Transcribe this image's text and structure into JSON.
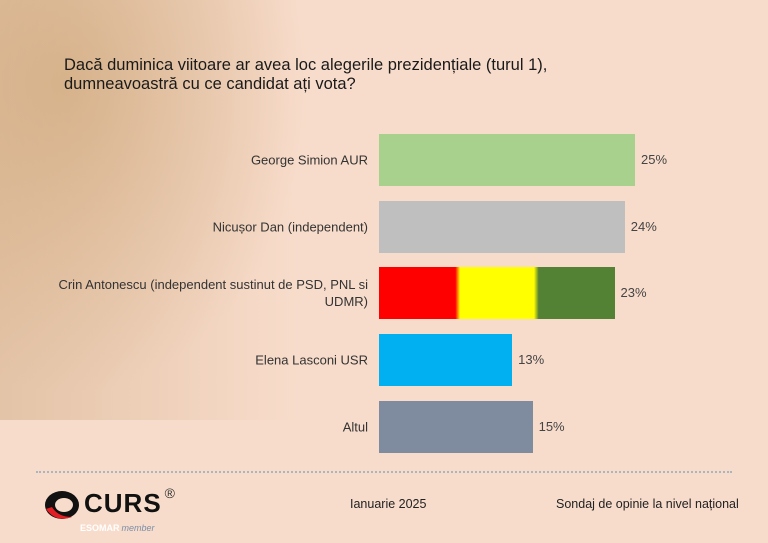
{
  "chart_data": {
    "type": "bar",
    "orientation": "horizontal",
    "title": "Dacă duminica viitoare ar avea loc alegerile prezidențiale (turul 1), dumneavoastră cu ce candidat ați vota?",
    "categories": [
      "George Simion AUR",
      "Nicușor Dan (independent)",
      "Crin Antonescu (independent sustinut de PSD, PNL si UDMR)",
      "Elena Lasconi USR",
      "Altul"
    ],
    "values": [
      25,
      24,
      23,
      13,
      15
    ],
    "value_labels": [
      "25%",
      "24%",
      "23%",
      "13%",
      "15%"
    ],
    "colors": [
      [
        "#a9d18e"
      ],
      [
        "#bfbfbf"
      ],
      [
        "#ff0000",
        "#ffff00",
        "#548235"
      ],
      [
        "#00b0f0"
      ],
      [
        "#7f8ca0"
      ]
    ],
    "grid": false,
    "xlabel": "",
    "ylabel": ""
  },
  "footer": {
    "brand": "CURS",
    "registered": "®",
    "esomar": "ESOMAR",
    "member": "member",
    "date": "Ianuarie 2025",
    "survey": "Sondaj de opinie la nivel național"
  }
}
